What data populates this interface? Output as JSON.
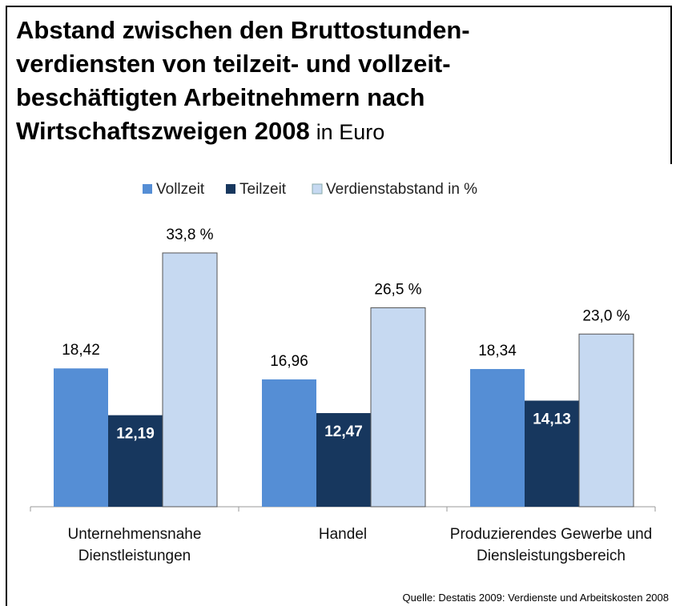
{
  "chart_data": {
    "type": "bar",
    "title": [
      "Abstand zwischen den Bruttostunden-",
      "verdiensten von teilzeit- und vollzeit-",
      "beschäftigten Arbeitnehmern nach",
      "Wirtschaftszweigen 2008"
    ],
    "subtitle": "in Euro",
    "categories": [
      "Unternehmensnahe Dienstleistungen",
      "Handel",
      "Produzierendes Gewerbe und Diensleistungsbereich"
    ],
    "series": [
      {
        "name": "Vollzeit",
        "color": "#558ed5",
        "values": [
          18.42,
          16.96,
          18.34
        ],
        "value_labels": [
          "18,42",
          "16,96",
          "18,34"
        ]
      },
      {
        "name": "Teilzeit",
        "color": "#17375e",
        "values": [
          12.19,
          12.47,
          14.13
        ],
        "value_labels": [
          "12,19",
          "12,47",
          "14,13"
        ]
      },
      {
        "name": "Verdienstabstand in %",
        "color": "#c6d9f1",
        "values": [
          33.8,
          26.5,
          23.0
        ],
        "value_labels": [
          "33,8 %",
          "26,5 %",
          "23,0 %"
        ]
      }
    ],
    "source": "Quelle: Destatis 2009: Verdienste und Arbeitskosten  2008"
  }
}
